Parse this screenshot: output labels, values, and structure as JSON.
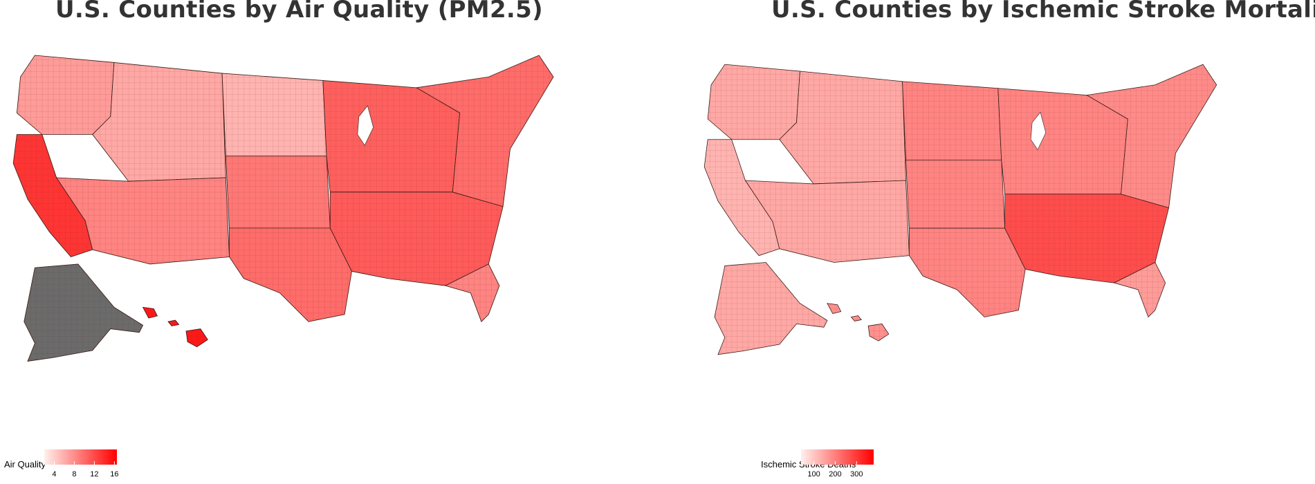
{
  "maps": [
    {
      "id": "air",
      "title": "U.S. Counties by Air Quality (PM2.5)",
      "legend": {
        "title": "Air Quality",
        "min": 2,
        "max": 16.5,
        "ticks": [
          4,
          8,
          12,
          16
        ],
        "color_low": "#fff0ec",
        "color_high": "#ff0000"
      },
      "regions": [
        {
          "name": "pacific-northwest",
          "level": 0.35
        },
        {
          "name": "california",
          "level": 0.78
        },
        {
          "name": "mountain-west",
          "level": 0.3
        },
        {
          "name": "southwest",
          "level": 0.45
        },
        {
          "name": "northern-plains",
          "level": 0.25
        },
        {
          "name": "central-plains",
          "level": 0.5
        },
        {
          "name": "texas",
          "level": 0.55
        },
        {
          "name": "midwest",
          "level": 0.6
        },
        {
          "name": "south",
          "level": 0.62
        },
        {
          "name": "northeast",
          "level": 0.55
        },
        {
          "name": "florida",
          "level": 0.45
        },
        {
          "name": "alaska",
          "level": null
        },
        {
          "name": "hawaii",
          "level": 0.9
        }
      ],
      "missing_color": "#6b6b6b"
    },
    {
      "id": "stroke",
      "title": "U.S. Counties by Ischemic Stroke Mortality",
      "legend": {
        "title": "Ischemic Stroke Deaths",
        "min": 40,
        "max": 380,
        "ticks": [
          100,
          200,
          300
        ],
        "color_low": "#fff0ec",
        "color_high": "#ff0000"
      },
      "regions": [
        {
          "name": "pacific-northwest",
          "level": 0.3
        },
        {
          "name": "california",
          "level": 0.25
        },
        {
          "name": "mountain-west",
          "level": 0.3
        },
        {
          "name": "southwest",
          "level": 0.3
        },
        {
          "name": "northern-plains",
          "level": 0.45
        },
        {
          "name": "central-plains",
          "level": 0.45
        },
        {
          "name": "texas",
          "level": 0.45
        },
        {
          "name": "midwest",
          "level": 0.45
        },
        {
          "name": "south",
          "level": 0.68
        },
        {
          "name": "northeast",
          "level": 0.42
        },
        {
          "name": "florida",
          "level": 0.35
        },
        {
          "name": "alaska",
          "level": 0.3
        },
        {
          "name": "hawaii",
          "level": 0.4
        }
      ],
      "missing_color": "#6b6b6b"
    }
  ]
}
